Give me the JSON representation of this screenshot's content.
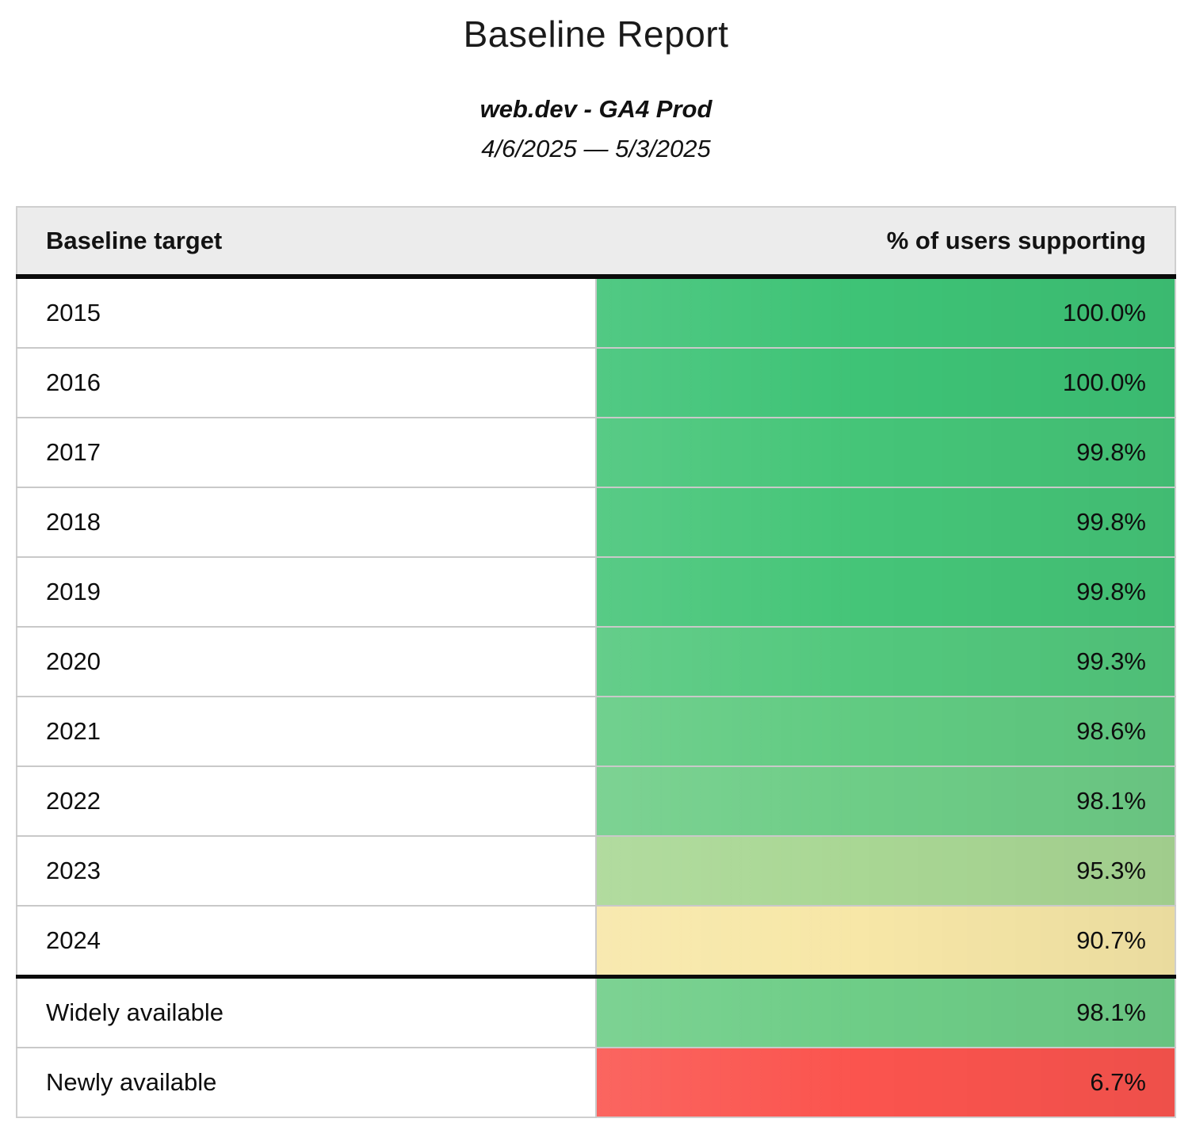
{
  "header": {
    "title": "Baseline Report",
    "subtitle": "web.dev - GA4 Prod",
    "date_range": "4/6/2025 — 5/3/2025"
  },
  "table": {
    "columns": [
      "Baseline target",
      "% of users supporting"
    ],
    "header_bg": "#ececec",
    "separator_color": "#c9c9c9",
    "divider_color": "#0b0b0b",
    "rows": [
      {
        "target": "2015",
        "value": "100.0%",
        "color": "#3ec376",
        "section_break": false
      },
      {
        "target": "2016",
        "value": "100.0%",
        "color": "#3ec376",
        "section_break": false
      },
      {
        "target": "2017",
        "value": "99.8%",
        "color": "#45c578",
        "section_break": false
      },
      {
        "target": "2018",
        "value": "99.8%",
        "color": "#45c578",
        "section_break": false
      },
      {
        "target": "2019",
        "value": "99.8%",
        "color": "#45c578",
        "section_break": false
      },
      {
        "target": "2020",
        "value": "99.3%",
        "color": "#53c87d",
        "section_break": false
      },
      {
        "target": "2021",
        "value": "98.6%",
        "color": "#61cb82",
        "section_break": false
      },
      {
        "target": "2022",
        "value": "98.1%",
        "color": "#6ecd87",
        "section_break": false
      },
      {
        "target": "2023",
        "value": "95.3%",
        "color": "#a9d794",
        "section_break": false
      },
      {
        "target": "2024",
        "value": "90.7%",
        "color": "#f7e7a7",
        "section_break": false
      },
      {
        "target": "Widely available",
        "value": "98.1%",
        "color": "#6ecd87",
        "section_break": true
      },
      {
        "target": "Newly available",
        "value": "6.7%",
        "color": "#fb544e",
        "section_break": false
      }
    ]
  },
  "chart_data": {
    "type": "table",
    "title": "Baseline Report",
    "subtitle": "web.dev - GA4 Prod",
    "date_range": "4/6/2025 — 5/3/2025",
    "columns": [
      "Baseline target",
      "% of users supporting"
    ],
    "categories": [
      "2015",
      "2016",
      "2017",
      "2018",
      "2019",
      "2020",
      "2021",
      "2022",
      "2023",
      "2024",
      "Widely available",
      "Newly available"
    ],
    "values": [
      100.0,
      100.0,
      99.8,
      99.8,
      99.8,
      99.3,
      98.6,
      98.1,
      95.3,
      90.7,
      98.1,
      6.7
    ],
    "value_unit": "%",
    "layout_hints": "value column colored on red-yellow-green heatmap scale; thick rule separates year rows from availability rows"
  }
}
